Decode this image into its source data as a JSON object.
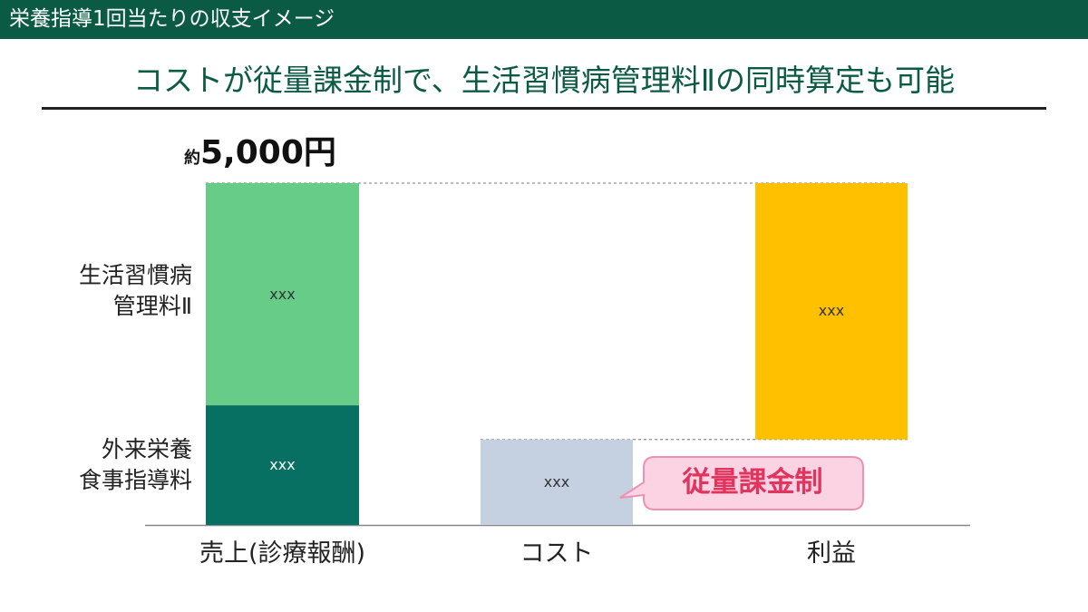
{
  "header": {
    "title": "栄養指導1回当たりの収支イメージ"
  },
  "main_title": "コストが従量課金制で、生活習慣病管理料Ⅱの同時算定も可能",
  "total": {
    "prefix": "約",
    "value": "5,000円"
  },
  "row_labels": {
    "top": [
      "生活習慣病",
      "管理料Ⅱ"
    ],
    "bottom": [
      "外来栄養",
      "食事指導料"
    ]
  },
  "callout": {
    "text": "従量課金制"
  },
  "colors": {
    "header_bg": "#0b5a43",
    "title_text": "#0b5a43",
    "lifestyle_fee": "#66cc88",
    "nutrition_fee": "#077062",
    "cost": "#c5d0e0",
    "profit": "#ffc000",
    "callout_bg": "#fbd3e3",
    "callout_border": "#ee8fb4",
    "callout_text": "#e0355e"
  },
  "chart_data": {
    "type": "bar",
    "categories": [
      "売上(診療報酬)",
      "コスト",
      "利益"
    ],
    "ylim": [
      0,
      5000
    ],
    "stacks": [
      {
        "category": "売上(診療報酬)",
        "segments": [
          {
            "label": "xxx",
            "value": 1750,
            "color": "#077062"
          },
          {
            "label": "xxx",
            "value": 3250,
            "color": "#66cc88"
          }
        ]
      },
      {
        "category": "コスト",
        "segments": [
          {
            "label": "xxx",
            "value": 1250,
            "color": "#c5d0e0"
          }
        ]
      },
      {
        "category": "利益",
        "base": 1250,
        "segments": [
          {
            "label": "xxx",
            "value": 3750,
            "color": "#ffc000"
          }
        ]
      }
    ]
  }
}
